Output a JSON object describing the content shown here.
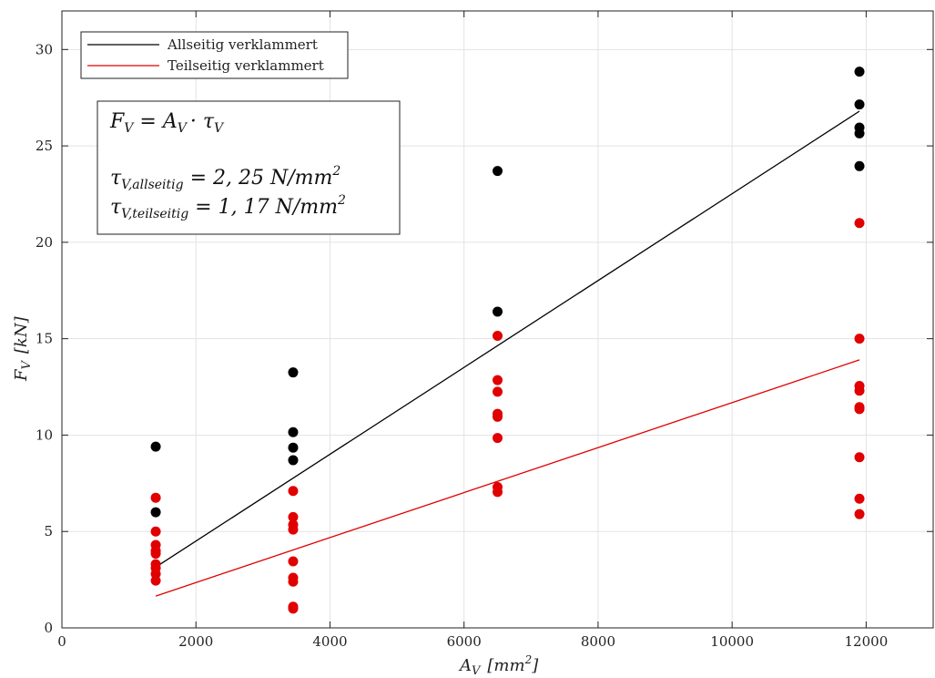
{
  "chart_data": {
    "type": "scatter",
    "xlabel": "A",
    "xlabel_sub": "V",
    "xlabel_unit": "[mm",
    "xlabel_unit_sup": "2",
    "xlabel_unit_close": "]",
    "ylabel": "F",
    "ylabel_sub": "V",
    "ylabel_unit": "[kN]",
    "xlim": [
      0,
      13000
    ],
    "ylim": [
      0,
      32
    ],
    "xticks": [
      0,
      2000,
      4000,
      6000,
      8000,
      10000,
      12000
    ],
    "yticks": [
      0,
      5,
      10,
      15,
      20,
      25,
      30
    ],
    "grid": true,
    "legend_position": "top-left",
    "legend": [
      {
        "label": "Allseitig verklammert",
        "color": "#000000"
      },
      {
        "label": "Teilseitig verklammert",
        "color": "#e00000"
      }
    ],
    "annotation": {
      "formula": {
        "lhs": "F",
        "lhs_sub": "V",
        "rhs1": "A",
        "rhs1_sub": "V",
        "op": "· τ",
        "rhs2_sub": "V",
        "eq": " = "
      },
      "line1": {
        "sym": "τ",
        "sub": "V,allseitig",
        "val": " = 2, 25 N/mm",
        "sup": "2"
      },
      "line2": {
        "sym": "τ",
        "sub": "V,teilseitig",
        "val": " = 1, 17 N/mm",
        "sup": "2"
      }
    },
    "series": [
      {
        "marker_color": "#000000",
        "points": [
          [
            1400,
            9.4
          ],
          [
            1400,
            6.0
          ],
          [
            3450,
            13.25
          ],
          [
            3450,
            10.15
          ],
          [
            3450,
            9.35
          ],
          [
            3450,
            8.7
          ],
          [
            6500,
            23.7
          ],
          [
            6500,
            16.4
          ],
          [
            11900,
            28.85
          ],
          [
            11900,
            27.15
          ],
          [
            11900,
            25.95
          ],
          [
            11900,
            25.65
          ],
          [
            11900,
            23.95
          ]
        ],
        "fit": {
          "x": [
            1400,
            11900
          ],
          "y": [
            3.15,
            26.8
          ]
        }
      },
      {
        "marker_color": "#e00000",
        "points": [
          [
            1400,
            6.75
          ],
          [
            1400,
            5.0
          ],
          [
            1400,
            4.3
          ],
          [
            1400,
            4.0
          ],
          [
            1400,
            3.85
          ],
          [
            1400,
            3.3
          ],
          [
            1400,
            3.1
          ],
          [
            1400,
            2.8
          ],
          [
            1400,
            2.45
          ],
          [
            3450,
            7.1
          ],
          [
            3450,
            5.75
          ],
          [
            3450,
            5.35
          ],
          [
            3450,
            5.1
          ],
          [
            3450,
            3.45
          ],
          [
            3450,
            2.6
          ],
          [
            3450,
            2.4
          ],
          [
            3450,
            1.1
          ],
          [
            3450,
            1.0
          ],
          [
            6500,
            15.15
          ],
          [
            6500,
            12.85
          ],
          [
            6500,
            12.25
          ],
          [
            6500,
            11.1
          ],
          [
            6500,
            10.95
          ],
          [
            6500,
            9.85
          ],
          [
            6500,
            7.3
          ],
          [
            6500,
            7.05
          ],
          [
            11900,
            21.0
          ],
          [
            11900,
            15.0
          ],
          [
            11900,
            12.55
          ],
          [
            11900,
            12.3
          ],
          [
            11900,
            11.45
          ],
          [
            11900,
            11.35
          ],
          [
            11900,
            8.85
          ],
          [
            11900,
            6.7
          ],
          [
            11900,
            5.9
          ]
        ],
        "fit": {
          "x": [
            1400,
            11900
          ],
          "y": [
            1.65,
            13.9
          ]
        }
      }
    ]
  }
}
